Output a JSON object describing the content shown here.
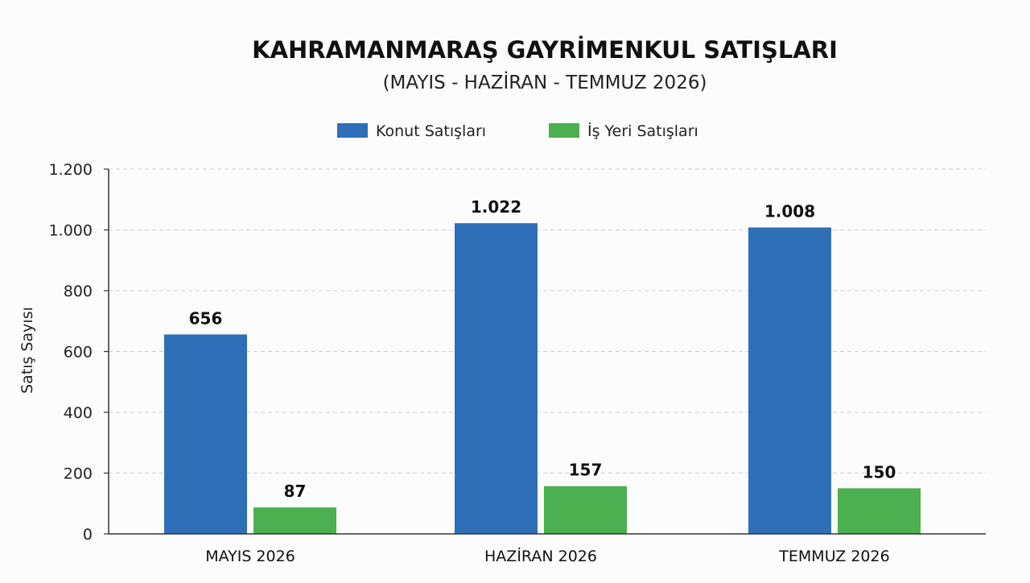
{
  "chart_data": {
    "type": "bar",
    "title": "KAHRAMANMARAŞ GAYRİMENKUL SATIŞLARI",
    "subtitle": "(MAYIS - HAZİRAN - TEMMUZ 2026)",
    "xlabel": "",
    "ylabel": "Satış Sayısı",
    "ylim": [
      0,
      1200
    ],
    "yticks": [
      0,
      200,
      400,
      600,
      800,
      1000,
      1200
    ],
    "ytick_labels": [
      "0",
      "200",
      "400",
      "600",
      "800",
      "1.000",
      "1.200"
    ],
    "grid": true,
    "legend_position": "top-center",
    "categories": [
      "MAYIS 2026",
      "HAZİRAN 2026",
      "TEMMUZ 2026"
    ],
    "series": [
      {
        "name": "Konut Satışları",
        "color": "#2f6fb7",
        "values": [
          656,
          1022,
          1008
        ],
        "labels": [
          "656",
          "1.022",
          "1.008"
        ]
      },
      {
        "name": "İş Yeri Satışları",
        "color": "#4caf50",
        "values": [
          87,
          157,
          150
        ],
        "labels": [
          "87",
          "157",
          "150"
        ]
      }
    ]
  }
}
